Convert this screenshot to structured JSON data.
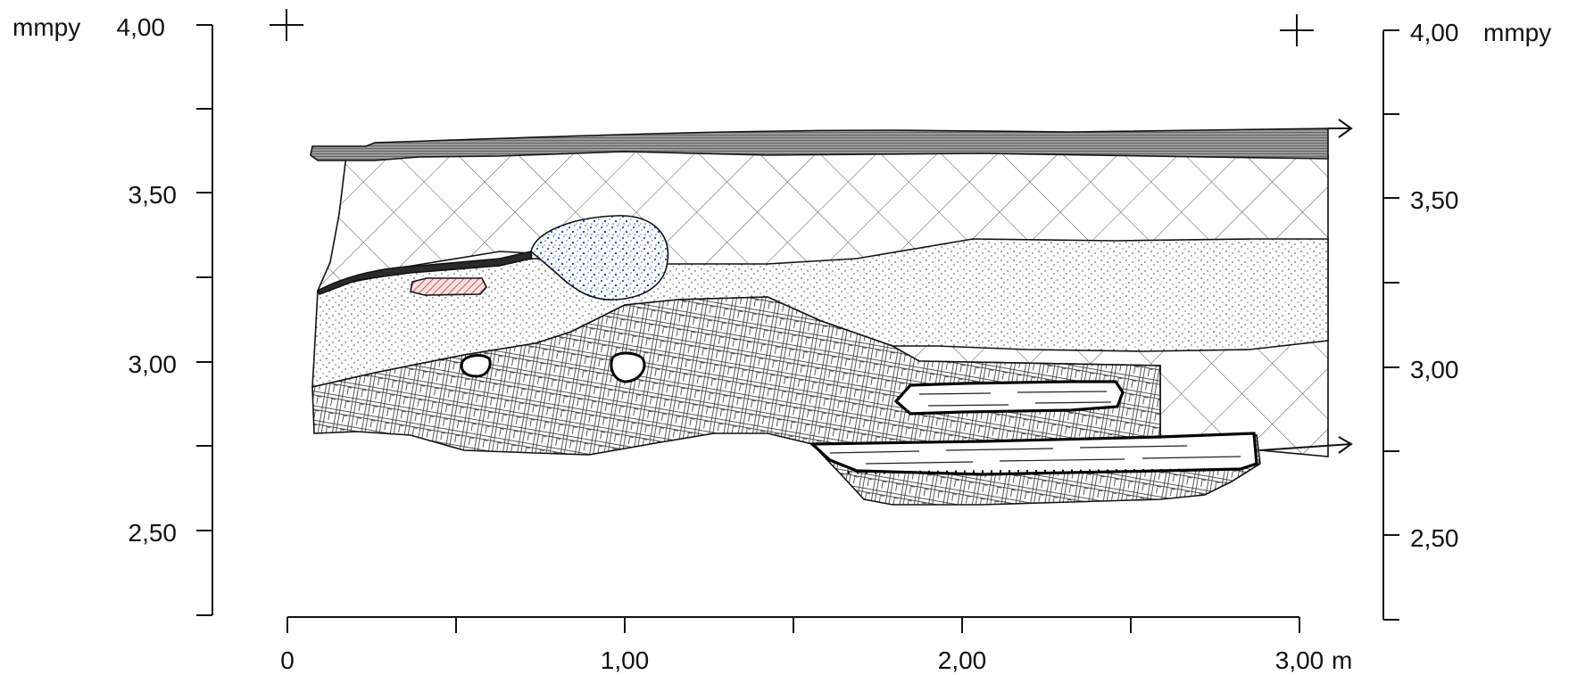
{
  "labels": {
    "unit_left": "mmpy",
    "unit_right": "mmpy",
    "x_unit": "m"
  },
  "left_axis": {
    "ticks": [
      "4,00",
      "3,50",
      "3,00",
      "2,50"
    ]
  },
  "right_axis": {
    "ticks": [
      "4,00",
      "3,50",
      "3,00",
      "2,50"
    ]
  },
  "bottom_axis": {
    "ticks": [
      "0",
      "1,00",
      "2,00",
      "3,00"
    ]
  },
  "colors": {
    "asphalt": "#8a8a8a",
    "stone_fill": "#1a4fd6",
    "brick_fill": "#e05050",
    "outline": "#111111"
  }
}
